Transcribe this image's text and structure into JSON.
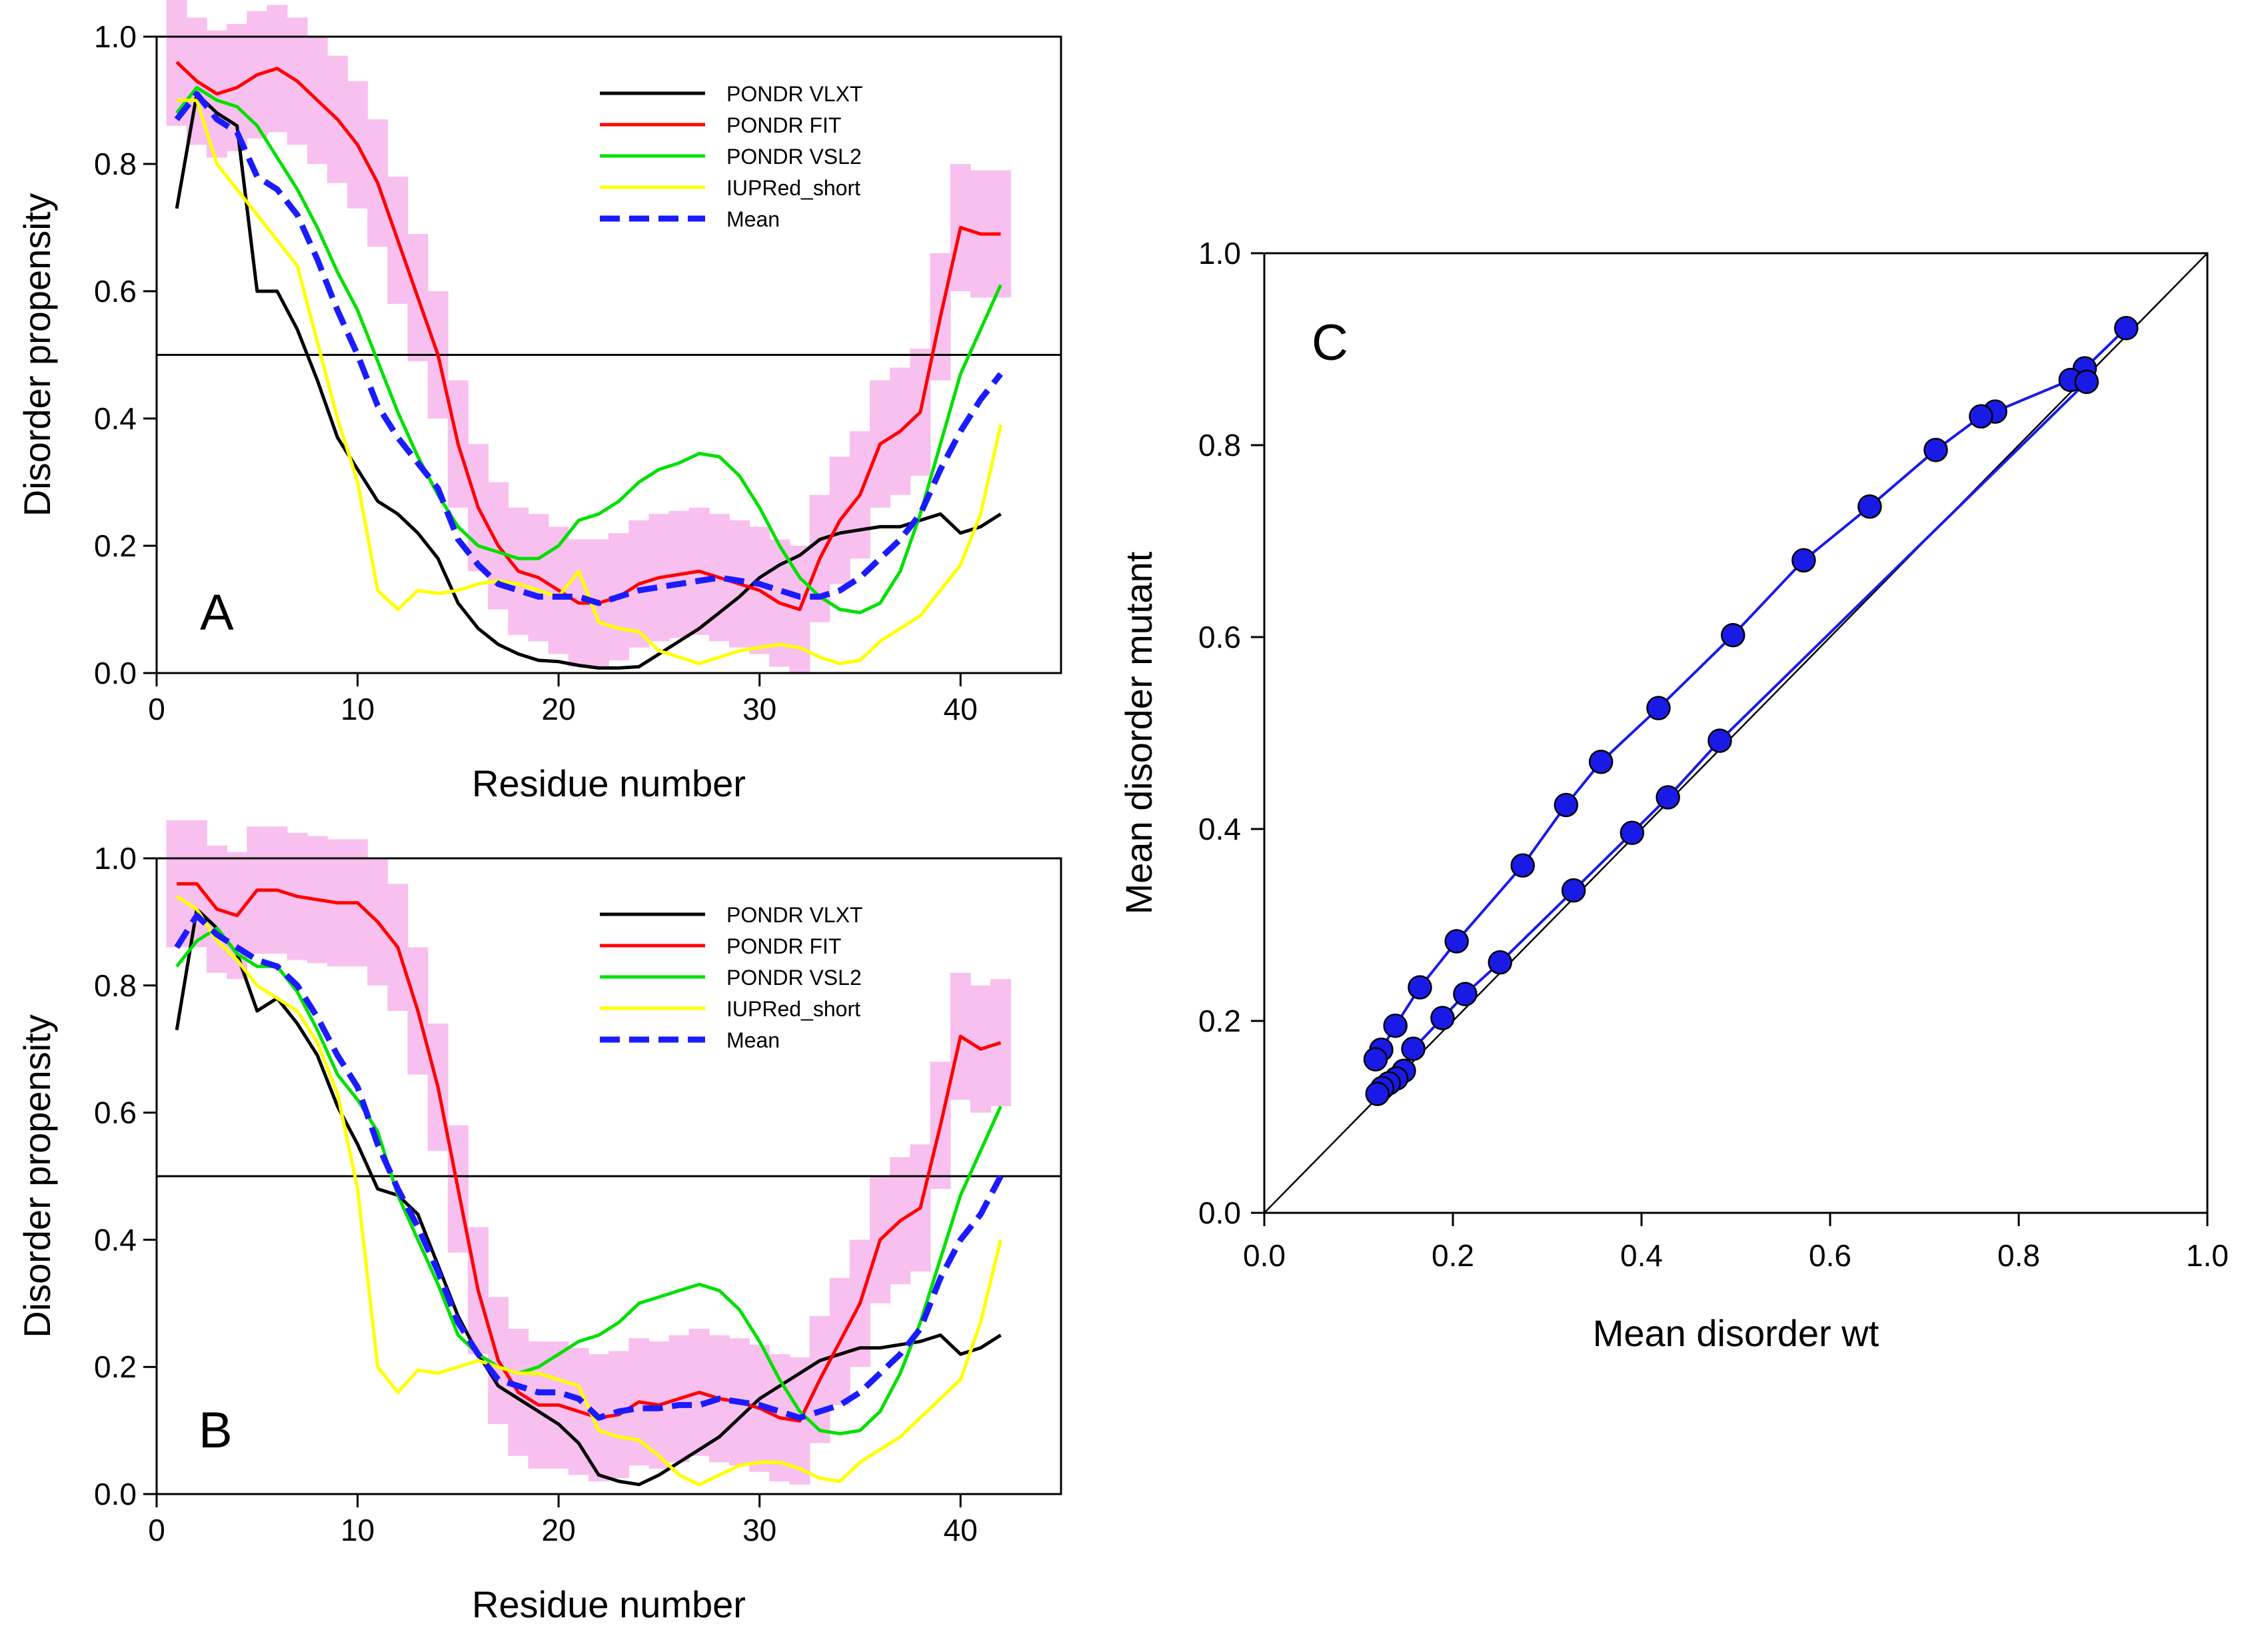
{
  "figure": {
    "panel_a_label": "A",
    "panel_b_label": "B",
    "panel_c_label": "C"
  },
  "chart_data": [
    {
      "id": "A",
      "type": "line",
      "title": "",
      "xlabel": "Residue number",
      "ylabel": "Disorder propensity",
      "xlim": [
        0,
        45
      ],
      "ylim": [
        0,
        1
      ],
      "xticks": [
        "0",
        "10",
        "20",
        "30",
        "40"
      ],
      "yticks": [
        "0.0",
        "0.2",
        "0.4",
        "0.6",
        "0.8",
        "1.0"
      ],
      "threshold": 0.5,
      "legend_position": "top-right",
      "x": [
        1,
        2,
        3,
        4,
        5,
        6,
        7,
        8,
        9,
        10,
        11,
        12,
        13,
        14,
        15,
        16,
        17,
        18,
        19,
        20,
        21,
        22,
        23,
        24,
        25,
        26,
        27,
        28,
        29,
        30,
        31,
        32,
        33,
        34,
        35,
        36,
        37,
        38,
        39,
        40,
        41,
        42
      ],
      "error_band": {
        "color": "#f8c0ee",
        "halfwidth": 0.1,
        "series_index": 1
      },
      "series": [
        {
          "name": "PONDR VLXT",
          "color": "#000000",
          "dash": false,
          "values": [
            0.73,
            0.91,
            0.88,
            0.86,
            0.6,
            0.6,
            0.54,
            0.46,
            0.37,
            0.32,
            0.27,
            0.25,
            0.22,
            0.18,
            0.11,
            0.07,
            0.045,
            0.03,
            0.02,
            0.018,
            0.012,
            0.008,
            0.008,
            0.01,
            0.03,
            0.05,
            0.07,
            0.095,
            0.12,
            0.15,
            0.17,
            0.185,
            0.21,
            0.22,
            0.225,
            0.23,
            0.23,
            0.24,
            0.25,
            0.22,
            0.23,
            0.25
          ]
        },
        {
          "name": "PONDR FIT",
          "color": "#ff0000",
          "dash": false,
          "values": [
            0.96,
            0.93,
            0.91,
            0.92,
            0.94,
            0.95,
            0.93,
            0.9,
            0.87,
            0.83,
            0.77,
            0.68,
            0.59,
            0.5,
            0.36,
            0.26,
            0.2,
            0.16,
            0.15,
            0.13,
            0.11,
            0.11,
            0.12,
            0.14,
            0.15,
            0.155,
            0.16,
            0.15,
            0.14,
            0.13,
            0.11,
            0.1,
            0.18,
            0.24,
            0.28,
            0.36,
            0.38,
            0.41,
            0.56,
            0.7,
            0.69,
            0.69
          ]
        },
        {
          "name": "PONDR VSL2",
          "color": "#00e000",
          "dash": false,
          "values": [
            0.88,
            0.92,
            0.9,
            0.89,
            0.86,
            0.81,
            0.76,
            0.7,
            0.63,
            0.57,
            0.49,
            0.41,
            0.34,
            0.28,
            0.23,
            0.2,
            0.19,
            0.18,
            0.18,
            0.2,
            0.24,
            0.25,
            0.27,
            0.3,
            0.32,
            0.33,
            0.345,
            0.34,
            0.31,
            0.26,
            0.2,
            0.15,
            0.12,
            0.1,
            0.095,
            0.11,
            0.16,
            0.25,
            0.36,
            0.47,
            0.54,
            0.61
          ]
        },
        {
          "name": "IUPRed_short",
          "color": "#ffff00",
          "dash": false,
          "values": [
            0.9,
            0.9,
            0.8,
            0.76,
            0.72,
            0.68,
            0.64,
            0.52,
            0.4,
            0.3,
            0.13,
            0.1,
            0.13,
            0.125,
            0.13,
            0.14,
            0.145,
            0.14,
            0.13,
            0.12,
            0.16,
            0.08,
            0.07,
            0.065,
            0.035,
            0.025,
            0.015,
            0.025,
            0.035,
            0.04,
            0.045,
            0.04,
            0.025,
            0.015,
            0.02,
            0.05,
            0.07,
            0.09,
            0.13,
            0.17,
            0.25,
            0.39
          ]
        },
        {
          "name": "Mean",
          "color": "#1b1bff",
          "dash": true,
          "values": [
            0.87,
            0.91,
            0.87,
            0.85,
            0.78,
            0.76,
            0.72,
            0.65,
            0.57,
            0.5,
            0.42,
            0.37,
            0.33,
            0.29,
            0.21,
            0.17,
            0.14,
            0.13,
            0.12,
            0.12,
            0.12,
            0.11,
            0.12,
            0.13,
            0.135,
            0.14,
            0.145,
            0.15,
            0.145,
            0.14,
            0.13,
            0.12,
            0.12,
            0.13,
            0.15,
            0.18,
            0.21,
            0.25,
            0.32,
            0.38,
            0.43,
            0.47
          ]
        }
      ]
    },
    {
      "id": "B",
      "type": "line",
      "title": "",
      "xlabel": "Residue number",
      "ylabel": "Disorder propensity",
      "xlim": [
        0,
        45
      ],
      "ylim": [
        0,
        1
      ],
      "xticks": [
        "0",
        "10",
        "20",
        "30",
        "40"
      ],
      "yticks": [
        "0.0",
        "0.2",
        "0.4",
        "0.6",
        "0.8",
        "1.0"
      ],
      "threshold": 0.5,
      "legend_position": "top-right",
      "x": [
        1,
        2,
        3,
        4,
        5,
        6,
        7,
        8,
        9,
        10,
        11,
        12,
        13,
        14,
        15,
        16,
        17,
        18,
        19,
        20,
        21,
        22,
        23,
        24,
        25,
        26,
        27,
        28,
        29,
        30,
        31,
        32,
        33,
        34,
        35,
        36,
        37,
        38,
        39,
        40,
        41,
        42
      ],
      "error_band": {
        "color": "#f8c0ee",
        "halfwidth": 0.1,
        "series_index": 1
      },
      "series": [
        {
          "name": "PONDR VLXT",
          "color": "#000000",
          "dash": false,
          "values": [
            0.73,
            0.92,
            0.89,
            0.85,
            0.76,
            0.78,
            0.74,
            0.69,
            0.61,
            0.55,
            0.48,
            0.47,
            0.44,
            0.36,
            0.28,
            0.22,
            0.17,
            0.15,
            0.13,
            0.11,
            0.08,
            0.03,
            0.02,
            0.015,
            0.03,
            0.05,
            0.07,
            0.09,
            0.12,
            0.15,
            0.17,
            0.19,
            0.21,
            0.22,
            0.23,
            0.23,
            0.235,
            0.24,
            0.25,
            0.22,
            0.23,
            0.25
          ]
        },
        {
          "name": "PONDR FIT",
          "color": "#ff0000",
          "dash": false,
          "values": [
            0.96,
            0.96,
            0.92,
            0.91,
            0.95,
            0.95,
            0.94,
            0.935,
            0.93,
            0.93,
            0.9,
            0.86,
            0.76,
            0.64,
            0.48,
            0.32,
            0.21,
            0.16,
            0.14,
            0.14,
            0.13,
            0.12,
            0.125,
            0.145,
            0.14,
            0.15,
            0.16,
            0.15,
            0.145,
            0.135,
            0.12,
            0.115,
            0.18,
            0.24,
            0.3,
            0.4,
            0.43,
            0.45,
            0.58,
            0.72,
            0.7,
            0.71
          ]
        },
        {
          "name": "PONDR VSL2",
          "color": "#00e000",
          "dash": false,
          "values": [
            0.83,
            0.87,
            0.89,
            0.85,
            0.83,
            0.83,
            0.79,
            0.73,
            0.66,
            0.62,
            0.57,
            0.47,
            0.4,
            0.33,
            0.25,
            0.22,
            0.2,
            0.19,
            0.2,
            0.22,
            0.24,
            0.25,
            0.27,
            0.3,
            0.31,
            0.32,
            0.33,
            0.32,
            0.29,
            0.24,
            0.18,
            0.13,
            0.1,
            0.095,
            0.1,
            0.13,
            0.19,
            0.27,
            0.37,
            0.47,
            0.54,
            0.61
          ]
        },
        {
          "name": "IUPRed_short",
          "color": "#ffff00",
          "dash": false,
          "values": [
            0.94,
            0.92,
            0.87,
            0.84,
            0.8,
            0.78,
            0.76,
            0.71,
            0.63,
            0.48,
            0.2,
            0.16,
            0.195,
            0.19,
            0.2,
            0.21,
            0.2,
            0.19,
            0.19,
            0.18,
            0.17,
            0.1,
            0.09,
            0.085,
            0.06,
            0.03,
            0.015,
            0.03,
            0.045,
            0.05,
            0.05,
            0.04,
            0.025,
            0.02,
            0.05,
            0.07,
            0.09,
            0.12,
            0.15,
            0.18,
            0.27,
            0.4
          ]
        },
        {
          "name": "Mean",
          "color": "#1b1bff",
          "dash": true,
          "values": [
            0.86,
            0.91,
            0.88,
            0.86,
            0.84,
            0.83,
            0.8,
            0.75,
            0.69,
            0.64,
            0.55,
            0.48,
            0.42,
            0.35,
            0.27,
            0.22,
            0.18,
            0.17,
            0.16,
            0.16,
            0.15,
            0.12,
            0.13,
            0.135,
            0.135,
            0.14,
            0.14,
            0.15,
            0.145,
            0.14,
            0.13,
            0.12,
            0.13,
            0.14,
            0.16,
            0.19,
            0.22,
            0.26,
            0.34,
            0.4,
            0.44,
            0.5
          ]
        }
      ]
    },
    {
      "id": "C",
      "type": "scatter",
      "title": "",
      "xlabel": "Mean disorder wt",
      "ylabel": "Mean disorder mutant",
      "xlim": [
        0,
        1
      ],
      "ylim": [
        0,
        1
      ],
      "xticks": [
        "0.0",
        "0.2",
        "0.4",
        "0.6",
        "0.8",
        "1.0"
      ],
      "yticks": [
        "0.0",
        "0.2",
        "0.4",
        "0.6",
        "0.8",
        "1.0"
      ],
      "diagonal": true,
      "marker_color": "#1a1ae6",
      "series": [
        {
          "name": "upper branch",
          "x": [
            0.914,
            0.87,
            0.855,
            0.775,
            0.76,
            0.712,
            0.642,
            0.572,
            0.497,
            0.418,
            0.357,
            0.32,
            0.274,
            0.204,
            0.165,
            0.139,
            0.124,
            0.118
          ],
          "y": [
            0.922,
            0.88,
            0.868,
            0.835,
            0.83,
            0.795,
            0.736,
            0.68,
            0.602,
            0.526,
            0.47,
            0.425,
            0.362,
            0.283,
            0.235,
            0.195,
            0.17,
            0.16
          ]
        },
        {
          "name": "lower branch",
          "x": [
            0.872,
            0.483,
            0.428,
            0.39,
            0.328,
            0.25,
            0.213,
            0.189,
            0.158,
            0.148,
            0.14,
            0.132,
            0.125,
            0.12
          ],
          "y": [
            0.866,
            0.492,
            0.433,
            0.396,
            0.336,
            0.261,
            0.228,
            0.203,
            0.171,
            0.148,
            0.14,
            0.135,
            0.13,
            0.124
          ]
        }
      ]
    }
  ]
}
